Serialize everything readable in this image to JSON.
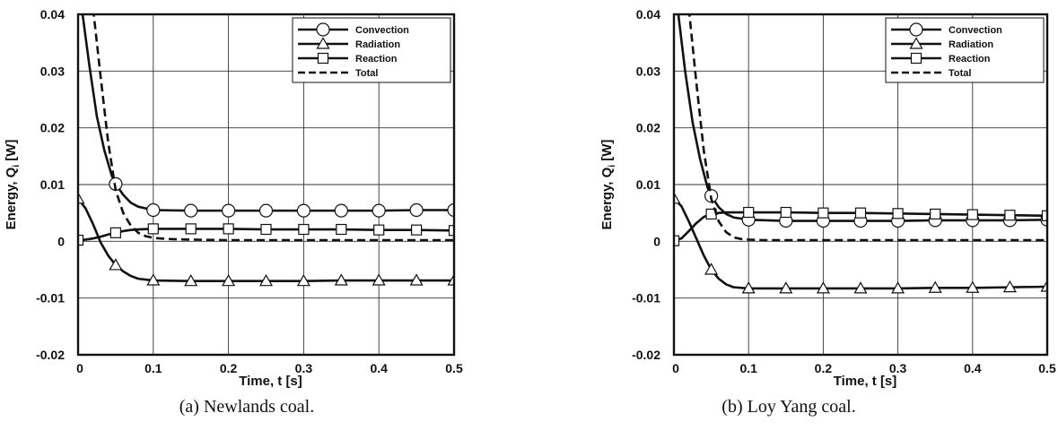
{
  "figure": {
    "captions": [
      "(a) Newlands coal.",
      "(b) Loy Yang coal."
    ]
  },
  "chart_data": [
    {
      "type": "line",
      "title": "",
      "caption": "(a) Newlands coal.",
      "xlabel": "Time, t [s]",
      "ylabel_main": "Energy, Q",
      "ylabel_sub": "i",
      "ylabel_unit": " [W]",
      "xlim": [
        0,
        0.5
      ],
      "ylim": [
        -0.02,
        0.04
      ],
      "xticks": [
        0,
        0.1,
        0.2,
        0.3,
        0.4,
        0.5
      ],
      "xtick_labels": [
        "0",
        "0.1",
        "0.2",
        "0.3",
        "0.4",
        "0.5"
      ],
      "yticks": [
        -0.02,
        -0.01,
        0,
        0.01,
        0.02,
        0.03,
        0.04
      ],
      "ytick_labels": [
        "-0.02",
        "-0.01",
        "0",
        "0.01",
        "0.02",
        "0.03",
        "0.04"
      ],
      "grid": true,
      "legend_position": "top-right",
      "series": [
        {
          "name": "Convection",
          "marker": "circle",
          "dash": "solid",
          "x": [
            0.005,
            0.015,
            0.025,
            0.035,
            0.045,
            0.05,
            0.06,
            0.07,
            0.08,
            0.1,
            0.15,
            0.2,
            0.25,
            0.3,
            0.35,
            0.4,
            0.45,
            0.5
          ],
          "y": [
            0.041,
            0.031,
            0.022,
            0.016,
            0.0115,
            0.0101,
            0.0082,
            0.0068,
            0.0061,
            0.0055,
            0.0054,
            0.0054,
            0.0054,
            0.0054,
            0.0054,
            0.0054,
            0.0055,
            0.0055
          ],
          "marker_x": [
            0.05,
            0.1,
            0.15,
            0.2,
            0.25,
            0.3,
            0.35,
            0.4,
            0.45,
            0.5
          ],
          "marker_y": [
            0.0101,
            0.0055,
            0.0054,
            0.0054,
            0.0054,
            0.0054,
            0.0054,
            0.0054,
            0.0055,
            0.0055
          ]
        },
        {
          "name": "Radiation",
          "marker": "triangle",
          "dash": "solid",
          "x": [
            0,
            0.01,
            0.02,
            0.03,
            0.04,
            0.05,
            0.06,
            0.07,
            0.08,
            0.1,
            0.15,
            0.2,
            0.25,
            0.3,
            0.35,
            0.4,
            0.45,
            0.5
          ],
          "y": [
            0.0075,
            0.0058,
            0.003,
            -0.0002,
            -0.0025,
            -0.0042,
            -0.0053,
            -0.0061,
            -0.0066,
            -0.0069,
            -0.007,
            -0.007,
            -0.007,
            -0.007,
            -0.0069,
            -0.0069,
            -0.0069,
            -0.0069
          ],
          "marker_x": [
            0,
            0.05,
            0.1,
            0.15,
            0.2,
            0.25,
            0.3,
            0.35,
            0.4,
            0.45,
            0.5
          ],
          "marker_y": [
            0.0075,
            -0.0042,
            -0.0069,
            -0.007,
            -0.007,
            -0.007,
            -0.007,
            -0.0069,
            -0.0069,
            -0.0069,
            -0.0069
          ]
        },
        {
          "name": "Reaction",
          "marker": "square",
          "dash": "solid",
          "x": [
            0,
            0.01,
            0.02,
            0.03,
            0.04,
            0.05,
            0.06,
            0.07,
            0.08,
            0.1,
            0.15,
            0.2,
            0.25,
            0.3,
            0.35,
            0.4,
            0.45,
            0.5
          ],
          "y": [
            0.0002,
            0.0003,
            0.0005,
            0.0008,
            0.0012,
            0.0015,
            0.0018,
            0.002,
            0.0021,
            0.0022,
            0.0022,
            0.0022,
            0.0021,
            0.0021,
            0.0021,
            0.002,
            0.002,
            0.0019
          ],
          "marker_x": [
            0,
            0.05,
            0.1,
            0.15,
            0.2,
            0.25,
            0.3,
            0.35,
            0.4,
            0.45,
            0.5
          ],
          "marker_y": [
            0.0002,
            0.0015,
            0.0022,
            0.0022,
            0.0022,
            0.0021,
            0.0021,
            0.0021,
            0.002,
            0.002,
            0.0019
          ]
        },
        {
          "name": "Total",
          "marker": "none",
          "dash": "dashed",
          "x": [
            0.02,
            0.03,
            0.04,
            0.05,
            0.06,
            0.07,
            0.08,
            0.09,
            0.1,
            0.12,
            0.15,
            0.2,
            0.3,
            0.4,
            0.5
          ],
          "y": [
            0.041,
            0.029,
            0.0175,
            0.009,
            0.005,
            0.0028,
            0.0015,
            0.0009,
            0.0006,
            0.0004,
            0.0003,
            0.0002,
            0.0002,
            0.0002,
            0.0002
          ]
        }
      ]
    },
    {
      "type": "line",
      "title": "",
      "caption": "(b) Loy Yang coal.",
      "xlabel": "Time, t [s]",
      "ylabel_main": "Energy, Q",
      "ylabel_sub": "i",
      "ylabel_unit": " [W]",
      "xlim": [
        0,
        0.5
      ],
      "ylim": [
        -0.02,
        0.04
      ],
      "xticks": [
        0,
        0.1,
        0.2,
        0.3,
        0.4,
        0.5
      ],
      "xtick_labels": [
        "0",
        "0.1",
        "0.2",
        "0.3",
        "0.4",
        "0.5"
      ],
      "yticks": [
        -0.02,
        -0.01,
        0,
        0.01,
        0.02,
        0.03,
        0.04
      ],
      "ytick_labels": [
        "-0.02",
        "-0.01",
        "0",
        "0.01",
        "0.02",
        "0.03",
        "0.04"
      ],
      "grid": true,
      "legend_position": "top-right",
      "series": [
        {
          "name": "Convection",
          "marker": "circle",
          "dash": "solid",
          "x": [
            0.005,
            0.015,
            0.025,
            0.035,
            0.045,
            0.05,
            0.06,
            0.07,
            0.08,
            0.1,
            0.15,
            0.2,
            0.25,
            0.3,
            0.35,
            0.4,
            0.45,
            0.5
          ],
          "y": [
            0.041,
            0.03,
            0.021,
            0.0145,
            0.0095,
            0.008,
            0.006,
            0.0048,
            0.0042,
            0.0038,
            0.0036,
            0.0036,
            0.0036,
            0.0036,
            0.0037,
            0.0037,
            0.0037,
            0.0038
          ],
          "marker_x": [
            0.05,
            0.1,
            0.15,
            0.2,
            0.25,
            0.3,
            0.35,
            0.4,
            0.45,
            0.5
          ],
          "marker_y": [
            0.008,
            0.0038,
            0.0036,
            0.0036,
            0.0036,
            0.0036,
            0.0037,
            0.0037,
            0.0037,
            0.0038
          ]
        },
        {
          "name": "Radiation",
          "marker": "triangle",
          "dash": "solid",
          "x": [
            0,
            0.01,
            0.02,
            0.03,
            0.04,
            0.05,
            0.06,
            0.07,
            0.08,
            0.1,
            0.15,
            0.2,
            0.25,
            0.3,
            0.35,
            0.4,
            0.45,
            0.5
          ],
          "y": [
            0.0075,
            0.0062,
            0.0035,
            0.0005,
            -0.0025,
            -0.005,
            -0.0066,
            -0.0076,
            -0.0081,
            -0.0083,
            -0.0083,
            -0.0083,
            -0.0083,
            -0.0083,
            -0.0082,
            -0.0082,
            -0.0081,
            -0.008
          ],
          "marker_x": [
            0,
            0.05,
            0.1,
            0.15,
            0.2,
            0.25,
            0.3,
            0.35,
            0.4,
            0.45,
            0.5
          ],
          "marker_y": [
            0.0075,
            -0.005,
            -0.0083,
            -0.0083,
            -0.0083,
            -0.0083,
            -0.0083,
            -0.0082,
            -0.0082,
            -0.0081,
            -0.008
          ]
        },
        {
          "name": "Reaction",
          "marker": "square",
          "dash": "solid",
          "x": [
            0,
            0.01,
            0.02,
            0.03,
            0.04,
            0.05,
            0.06,
            0.07,
            0.08,
            0.1,
            0.15,
            0.2,
            0.25,
            0.3,
            0.35,
            0.4,
            0.45,
            0.5
          ],
          "y": [
            0.0001,
            0.0005,
            0.0018,
            0.0032,
            0.0043,
            0.0048,
            0.005,
            0.0051,
            0.0051,
            0.0051,
            0.0051,
            0.005,
            0.005,
            0.0049,
            0.0048,
            0.0047,
            0.0046,
            0.0045
          ],
          "marker_x": [
            0,
            0.05,
            0.1,
            0.15,
            0.2,
            0.25,
            0.3,
            0.35,
            0.4,
            0.45,
            0.5
          ],
          "marker_y": [
            0.0001,
            0.0048,
            0.0051,
            0.0051,
            0.005,
            0.005,
            0.0049,
            0.0048,
            0.0047,
            0.0046,
            0.0045
          ]
        },
        {
          "name": "Total",
          "marker": "none",
          "dash": "dashed",
          "x": [
            0.02,
            0.03,
            0.04,
            0.05,
            0.06,
            0.07,
            0.08,
            0.09,
            0.1,
            0.12,
            0.15,
            0.2,
            0.3,
            0.4,
            0.5
          ],
          "y": [
            0.041,
            0.028,
            0.016,
            0.0075,
            0.0035,
            0.0016,
            0.0007,
            0.0004,
            0.0003,
            0.0002,
            0.0002,
            0.0002,
            0.0002,
            0.0002,
            0.0002
          ]
        }
      ]
    }
  ]
}
